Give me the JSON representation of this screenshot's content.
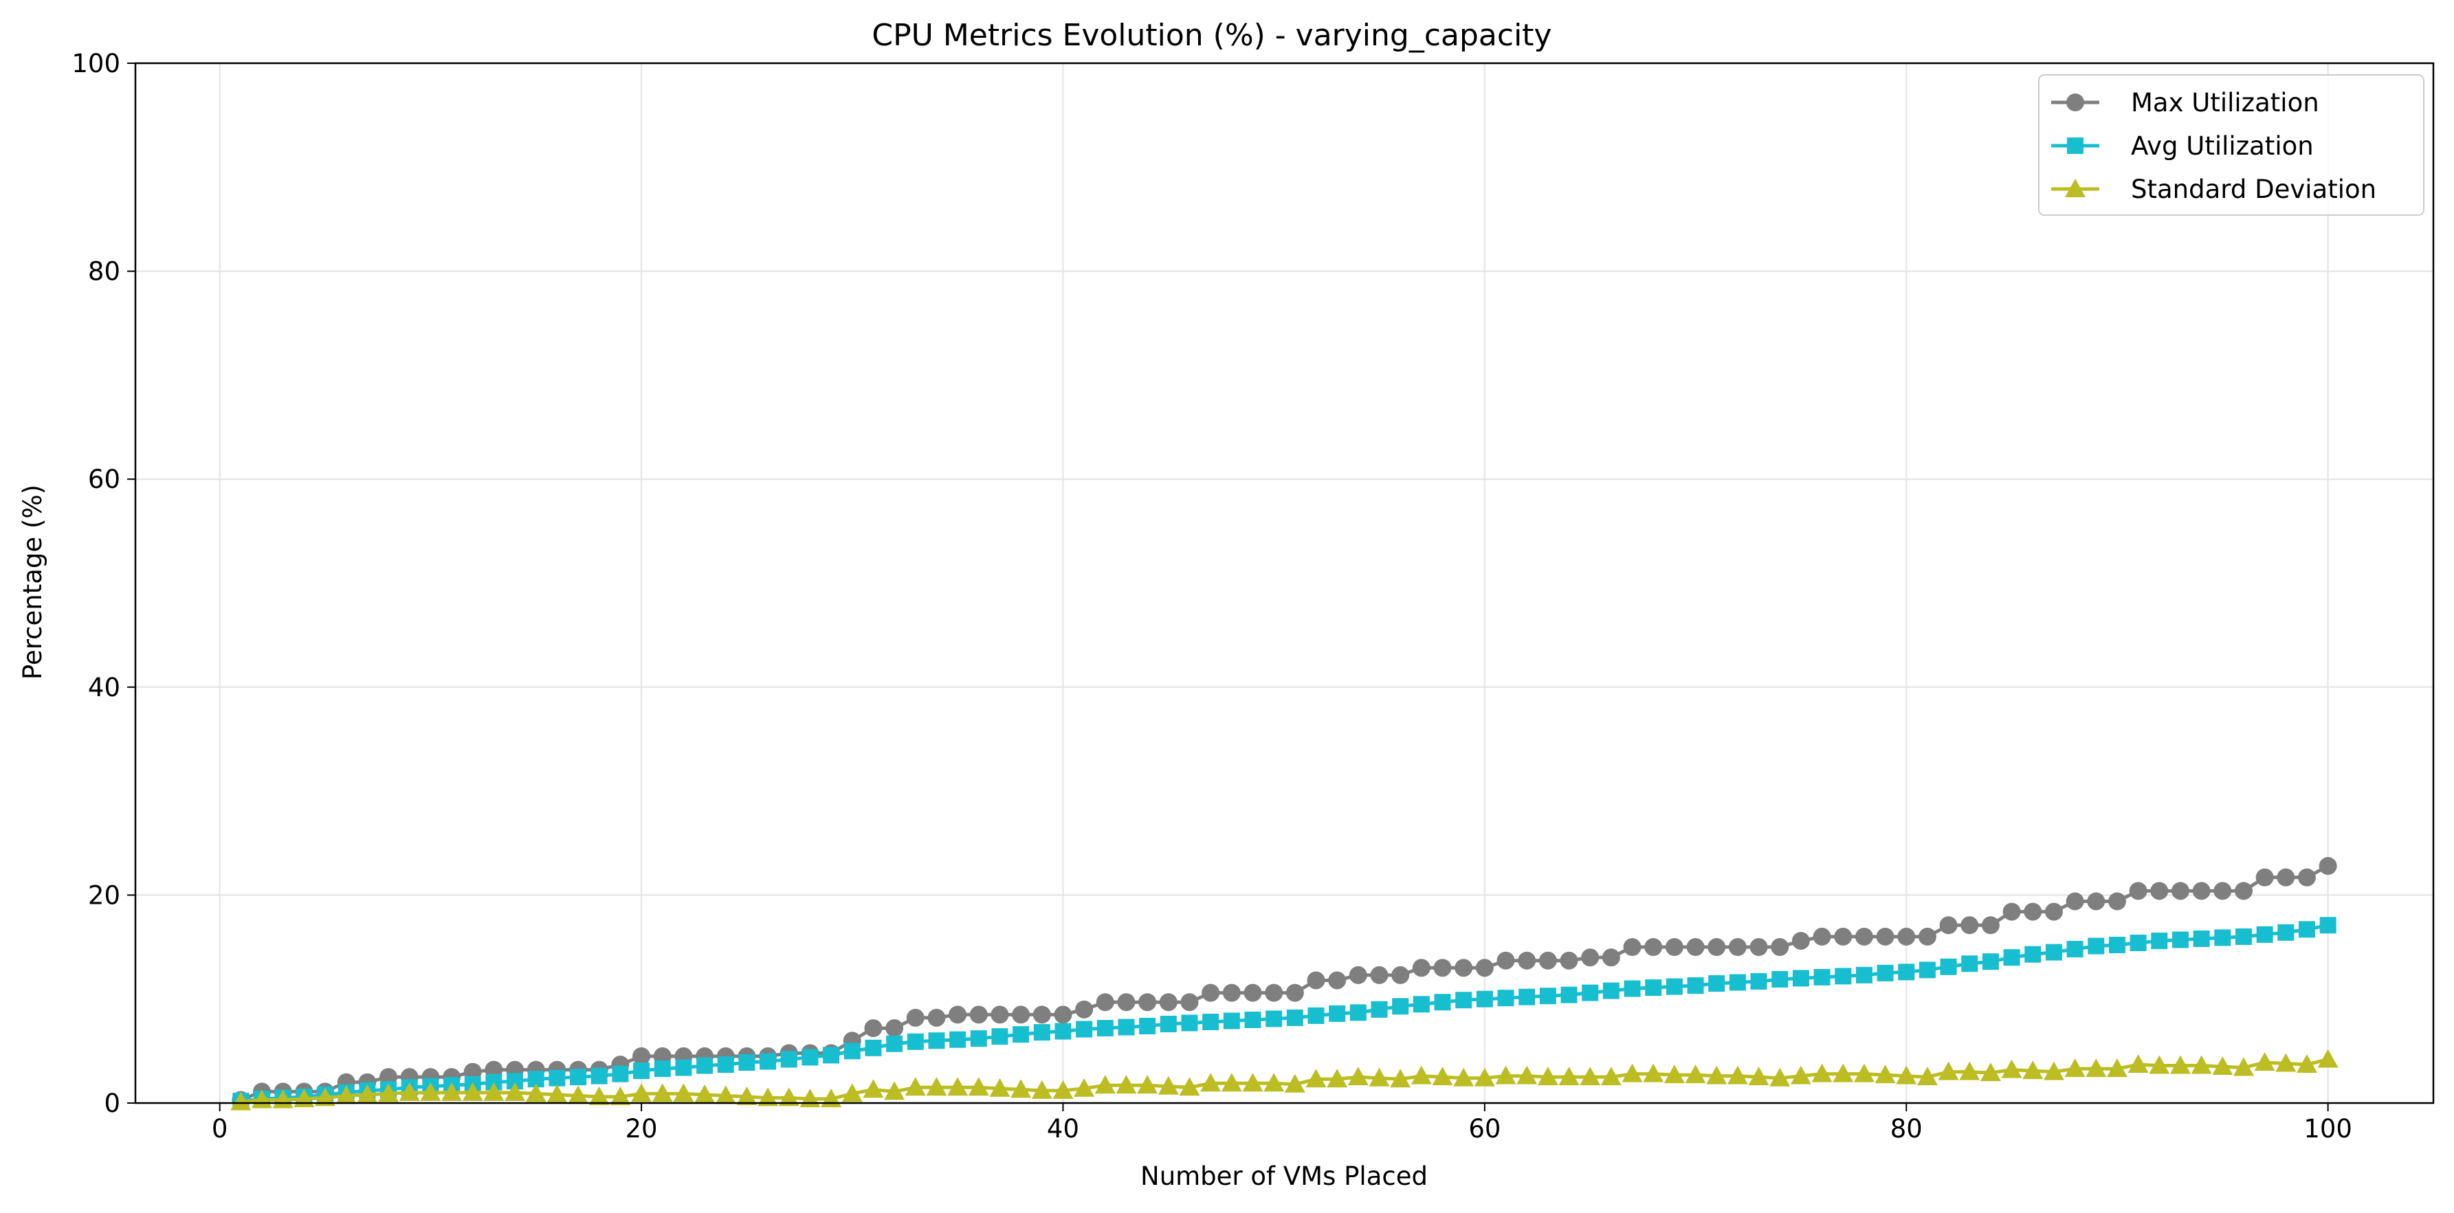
{
  "chart_data": {
    "type": "line",
    "title": "CPU Metrics Evolution (%) - varying_capacity",
    "xlabel": "Number of VMs Placed",
    "ylabel": "Percentage (%)",
    "xlim": [
      -4,
      105
    ],
    "ylim": [
      0,
      100
    ],
    "xticks": [
      0,
      20,
      40,
      60,
      80,
      100
    ],
    "yticks": [
      0,
      20,
      40,
      60,
      80,
      100
    ],
    "grid": true,
    "legend_position": "top-right",
    "x_start": 1,
    "series": [
      {
        "name": "Max Utilization",
        "color": "#7f7f7f",
        "marker": "circle",
        "values": [
          0.3,
          1.1,
          1.1,
          1.1,
          1.1,
          2.0,
          2.0,
          2.5,
          2.5,
          2.5,
          2.5,
          3.0,
          3.2,
          3.2,
          3.2,
          3.2,
          3.2,
          3.2,
          3.7,
          4.5,
          4.5,
          4.5,
          4.5,
          4.5,
          4.5,
          4.5,
          4.8,
          4.8,
          4.8,
          6.0,
          7.2,
          7.2,
          8.2,
          8.2,
          8.5,
          8.5,
          8.5,
          8.5,
          8.5,
          8.5,
          9.0,
          9.7,
          9.7,
          9.7,
          9.7,
          9.7,
          10.6,
          10.6,
          10.6,
          10.6,
          10.6,
          11.8,
          11.8,
          12.3,
          12.3,
          12.3,
          13.0,
          13.0,
          13.0,
          13.0,
          13.7,
          13.7,
          13.7,
          13.7,
          14.0,
          14.0,
          15.0,
          15.0,
          15.0,
          15.0,
          15.0,
          15.0,
          15.0,
          15.0,
          15.6,
          16.0,
          16.0,
          16.0,
          16.0,
          16.0,
          16.0,
          17.1,
          17.1,
          17.1,
          18.4,
          18.4,
          18.4,
          19.4,
          19.4,
          19.4,
          20.4,
          20.4,
          20.4,
          20.4,
          20.4,
          20.4,
          21.7,
          21.7,
          21.7,
          22.8
        ]
      },
      {
        "name": "Avg Utilization",
        "color": "#17becf",
        "marker": "square",
        "values": [
          0.2,
          0.4,
          0.5,
          0.6,
          0.8,
          1.0,
          1.2,
          1.3,
          1.5,
          1.6,
          1.7,
          1.8,
          2.0,
          2.1,
          2.3,
          2.4,
          2.5,
          2.6,
          2.8,
          3.1,
          3.3,
          3.4,
          3.6,
          3.7,
          3.9,
          4.0,
          4.2,
          4.4,
          4.6,
          5.0,
          5.3,
          5.7,
          5.9,
          6.0,
          6.1,
          6.2,
          6.4,
          6.6,
          6.8,
          6.9,
          7.1,
          7.2,
          7.3,
          7.4,
          7.6,
          7.7,
          7.8,
          7.9,
          8.0,
          8.1,
          8.2,
          8.4,
          8.6,
          8.7,
          9.0,
          9.3,
          9.5,
          9.7,
          9.9,
          10.0,
          10.1,
          10.2,
          10.3,
          10.4,
          10.6,
          10.8,
          11.0,
          11.1,
          11.2,
          11.3,
          11.5,
          11.6,
          11.7,
          11.9,
          12.0,
          12.1,
          12.2,
          12.3,
          12.5,
          12.6,
          12.8,
          13.1,
          13.4,
          13.6,
          14.0,
          14.3,
          14.5,
          14.8,
          15.1,
          15.2,
          15.4,
          15.6,
          15.7,
          15.8,
          15.9,
          16.0,
          16.2,
          16.4,
          16.7,
          17.1
        ]
      },
      {
        "name": "Standard Deviation",
        "color": "#bcbd22",
        "marker": "triangle",
        "values": [
          0.1,
          0.3,
          0.3,
          0.4,
          0.5,
          0.7,
          0.8,
          0.9,
          1.0,
          1.0,
          1.0,
          1.0,
          1.0,
          1.0,
          0.9,
          0.8,
          0.7,
          0.6,
          0.6,
          0.9,
          0.9,
          0.9,
          0.8,
          0.7,
          0.6,
          0.5,
          0.5,
          0.4,
          0.4,
          0.9,
          1.3,
          1.1,
          1.5,
          1.5,
          1.5,
          1.5,
          1.4,
          1.3,
          1.2,
          1.2,
          1.4,
          1.7,
          1.7,
          1.7,
          1.6,
          1.5,
          1.9,
          1.9,
          1.9,
          1.9,
          1.8,
          2.3,
          2.3,
          2.5,
          2.4,
          2.3,
          2.6,
          2.5,
          2.4,
          2.4,
          2.6,
          2.6,
          2.5,
          2.5,
          2.5,
          2.5,
          2.8,
          2.8,
          2.7,
          2.7,
          2.6,
          2.6,
          2.5,
          2.4,
          2.6,
          2.8,
          2.8,
          2.8,
          2.7,
          2.6,
          2.5,
          3.0,
          3.0,
          2.9,
          3.2,
          3.1,
          3.0,
          3.3,
          3.3,
          3.3,
          3.7,
          3.6,
          3.6,
          3.6,
          3.5,
          3.4,
          3.9,
          3.8,
          3.7,
          4.2
        ]
      }
    ]
  }
}
